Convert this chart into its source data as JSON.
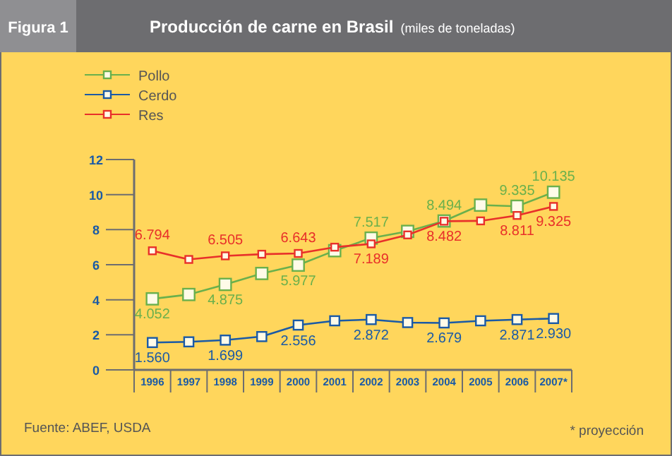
{
  "chart_data": {
    "type": "line",
    "title": "Producción de carne en Brasil",
    "subtitle": "(miles de toneladas)",
    "annotations": [
      "Figura 1",
      "Fuente: ABEF, USDA",
      "* proyección"
    ],
    "categories": [
      "1996",
      "1997",
      "1998",
      "1999",
      "2000",
      "2001",
      "2002",
      "2003",
      "2004",
      "2005",
      "2006",
      "2007*"
    ],
    "ylim": [
      0,
      12
    ],
    "yticks": [
      0,
      2,
      4,
      6,
      8,
      10,
      12
    ],
    "grid": false,
    "legend": "top left",
    "marker": "square",
    "line_style": "solid",
    "series": [
      {
        "name": "Pollo",
        "color": "#6ab04c",
        "values": [
          4.052,
          4.3,
          4.875,
          5.5,
          5.977,
          6.8,
          7.517,
          7.9,
          8.494,
          9.4,
          9.335,
          10.135
        ],
        "value_labels": [
          "4.052",
          null,
          "4.875",
          null,
          "5.977",
          null,
          "7.517",
          null,
          "8.494",
          null,
          "9.335",
          "10.135"
        ]
      },
      {
        "name": "Cerdo",
        "color": "#1a5aa6",
        "values": [
          1.56,
          1.6,
          1.699,
          1.9,
          2.556,
          2.8,
          2.872,
          2.7,
          2.679,
          2.8,
          2.871,
          2.93
        ],
        "value_labels": [
          "1.560",
          null,
          "1.699",
          null,
          "2.556",
          null,
          "2.872",
          null,
          "2.679",
          null,
          "2.871",
          "2.930"
        ]
      },
      {
        "name": "Res",
        "color": "#e8302a",
        "values": [
          6.794,
          6.3,
          6.505,
          6.6,
          6.643,
          7.0,
          7.189,
          7.7,
          8.482,
          8.5,
          8.811,
          9.325
        ],
        "value_labels": [
          "6.794",
          null,
          "6.505",
          null,
          "6.643",
          null,
          "7.189",
          null,
          "8.482",
          null,
          "8.811",
          "9.325"
        ]
      }
    ]
  }
}
